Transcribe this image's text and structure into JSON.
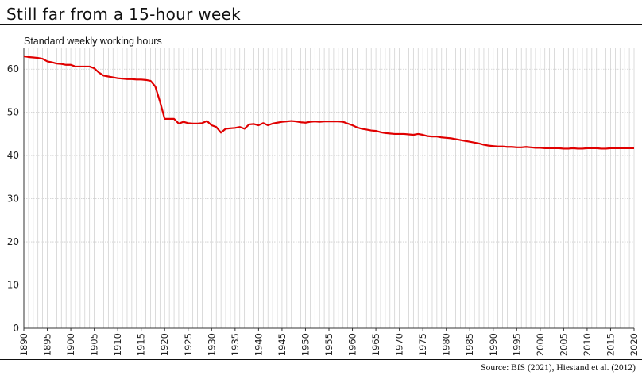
{
  "header": {
    "title": "Still far from a 15-hour week"
  },
  "footer": {
    "source": "Source: BfS (2021), Hiestand et al. (2012)"
  },
  "colors": {
    "line": "#e00000",
    "grid": "#cccccc",
    "axis": "#333333"
  },
  "chart_data": {
    "type": "line",
    "subtitle": "Standard weekly working hours",
    "xlabel": "",
    "ylabel": "",
    "xlim": [
      1890,
      2020
    ],
    "ylim": [
      0,
      65
    ],
    "grid": true,
    "x_ticks": [
      1890,
      1895,
      1900,
      1905,
      1910,
      1915,
      1920,
      1925,
      1930,
      1935,
      1940,
      1945,
      1950,
      1955,
      1960,
      1965,
      1970,
      1975,
      1980,
      1985,
      1990,
      1995,
      2000,
      2005,
      2010,
      2015,
      2020
    ],
    "y_ticks": [
      0,
      10,
      20,
      30,
      40,
      50,
      60
    ],
    "series": [
      {
        "x": [
          1890,
          1891,
          1892,
          1893,
          1894,
          1895,
          1896,
          1897,
          1898,
          1899,
          1900,
          1901,
          1902,
          1903,
          1904,
          1905,
          1906,
          1907,
          1908,
          1909,
          1910,
          1911,
          1912,
          1913,
          1914,
          1915,
          1916,
          1917,
          1918,
          1919,
          1920,
          1921,
          1922,
          1923,
          1924,
          1925,
          1926,
          1927,
          1928,
          1929,
          1930,
          1931,
          1932,
          1933,
          1934,
          1935,
          1936,
          1937,
          1938,
          1939,
          1940,
          1941,
          1942,
          1943,
          1944,
          1945,
          1946,
          1947,
          1948,
          1949,
          1950,
          1951,
          1952,
          1953,
          1954,
          1955,
          1956,
          1957,
          1958,
          1959,
          1960,
          1961,
          1962,
          1963,
          1964,
          1965,
          1966,
          1967,
          1968,
          1969,
          1970,
          1971,
          1972,
          1973,
          1974,
          1975,
          1976,
          1977,
          1978,
          1979,
          1980,
          1981,
          1982,
          1983,
          1984,
          1985,
          1986,
          1987,
          1988,
          1989,
          1990,
          1991,
          1992,
          1993,
          1994,
          1995,
          1996,
          1997,
          1998,
          1999,
          2000,
          2001,
          2002,
          2003,
          2004,
          2005,
          2006,
          2007,
          2008,
          2009,
          2010,
          2011,
          2012,
          2013,
          2014,
          2015,
          2016,
          2017,
          2018,
          2019,
          2020
        ],
        "values": [
          63.0,
          62.8,
          62.7,
          62.6,
          62.4,
          61.8,
          61.6,
          61.3,
          61.2,
          61.0,
          61.0,
          60.6,
          60.6,
          60.6,
          60.6,
          60.2,
          59.2,
          58.5,
          58.3,
          58.1,
          57.9,
          57.8,
          57.7,
          57.7,
          57.6,
          57.6,
          57.5,
          57.3,
          56.0,
          52.5,
          48.5,
          48.5,
          48.5,
          47.4,
          47.8,
          47.5,
          47.4,
          47.4,
          47.5,
          48.0,
          47.0,
          46.6,
          45.3,
          46.2,
          46.3,
          46.4,
          46.6,
          46.2,
          47.2,
          47.3,
          47.0,
          47.5,
          47.0,
          47.4,
          47.6,
          47.8,
          47.9,
          48.0,
          47.9,
          47.7,
          47.6,
          47.8,
          47.9,
          47.8,
          47.9,
          47.9,
          47.9,
          47.9,
          47.8,
          47.4,
          47.0,
          46.5,
          46.2,
          46.0,
          45.8,
          45.7,
          45.4,
          45.2,
          45.1,
          45.0,
          45.0,
          45.0,
          44.9,
          44.8,
          45.0,
          44.8,
          44.5,
          44.4,
          44.4,
          44.2,
          44.1,
          44.0,
          43.8,
          43.6,
          43.4,
          43.2,
          43.0,
          42.8,
          42.5,
          42.3,
          42.2,
          42.1,
          42.1,
          42.0,
          42.0,
          41.9,
          41.9,
          42.0,
          41.9,
          41.8,
          41.8,
          41.7,
          41.7,
          41.7,
          41.7,
          41.6,
          41.6,
          41.7,
          41.6,
          41.6,
          41.7,
          41.7,
          41.7,
          41.6,
          41.6,
          41.7,
          41.7,
          41.7,
          41.7,
          41.7,
          41.7
        ]
      }
    ]
  }
}
